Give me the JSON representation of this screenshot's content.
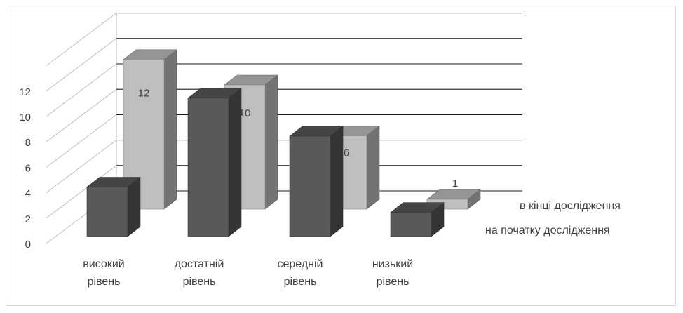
{
  "chart_data": {
    "type": "bar",
    "categories": [
      "високий рівень",
      "достатній рівень",
      "середній рівень",
      "низький рівень"
    ],
    "series": [
      {
        "name": "на початку дослідження",
        "values": [
          5,
          12,
          9,
          3
        ],
        "color": "#595959",
        "labels_visible": false
      },
      {
        "name": "в кінці дослідження",
        "values": [
          12,
          10,
          6,
          1
        ],
        "color": "#bfbfbf",
        "labels_visible": true
      }
    ],
    "yticks": [
      0,
      2,
      4,
      6,
      8,
      10,
      12
    ],
    "ylim": [
      0,
      14
    ],
    "grid": true,
    "legend_position": "right",
    "view": "3d-clustered-depth"
  }
}
